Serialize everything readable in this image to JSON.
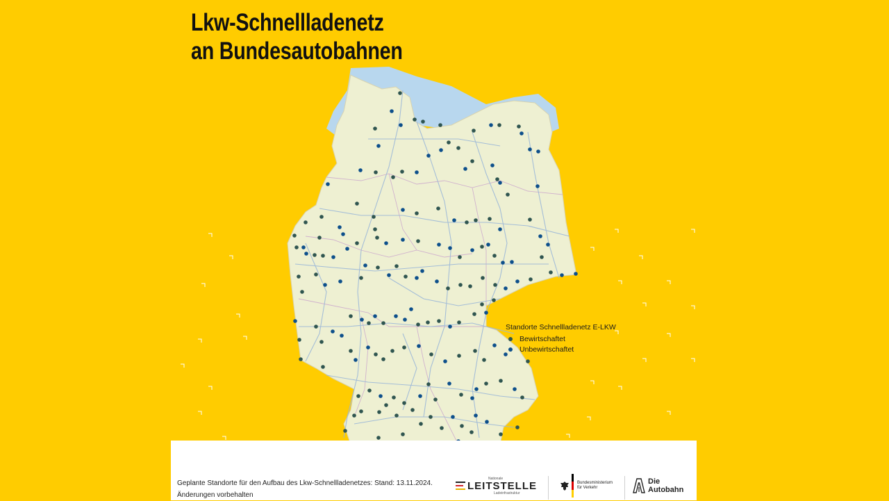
{
  "title": {
    "line1": "Lkw-Schnellladenetz",
    "line2": "an Bundesautobahnen"
  },
  "colors": {
    "background": "#ffcc00",
    "land": "#eef0d2",
    "sea": "#b8d7ee",
    "autobahn": "#9cb8d8",
    "border": "#c9a3cc",
    "bewirtschaftet": "#2f5550",
    "unbewirtschaftet": "#0d4f8b"
  },
  "legend": {
    "title": "Standorte Schnellladenetz E-LKW",
    "items": [
      {
        "label": "Bewirtschaftet",
        "color": "#2f5550"
      },
      {
        "label": "Unbewirtschaftet",
        "color": "#0d4f8b"
      }
    ]
  },
  "footer": {
    "line1": "Geplante Standorte für den Aufbau des Lkw-Schnellladenetzes: Stand: 13.11.2024.",
    "line2": "Änderungen vorbehalten"
  },
  "logos": {
    "leitstelle": {
      "small_top": "Nationale",
      "main": "LEITSTELLE",
      "small_bottom": "Ladeinfrastruktur"
    },
    "bmv": {
      "line1": "Bundesministerium",
      "line2": "für Verkehr"
    },
    "autobahn": {
      "line1": "Die",
      "line2": "Autobahn"
    }
  }
}
